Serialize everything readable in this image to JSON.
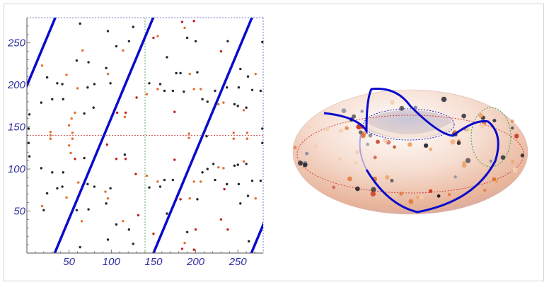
{
  "chart_data": [
    {
      "type": "scatter",
      "xlim": [
        0,
        280
      ],
      "ylim": [
        0,
        280
      ],
      "x_ticks": [
        50,
        100,
        150,
        200,
        250
      ],
      "y_ticks": [
        50,
        100,
        150,
        200,
        250
      ],
      "x_tick_labels": [
        "50",
        "100",
        "150",
        "200",
        "250"
      ],
      "y_tick_labels": [
        "50",
        "100",
        "150",
        "200",
        "250"
      ],
      "grid": false,
      "reference_lines": [
        {
          "orientation": "vertical",
          "value": 140,
          "color": "#6aa86a",
          "style": "dotted"
        },
        {
          "orientation": "horizontal",
          "value": 140,
          "color": "#d86060",
          "style": "dotted"
        },
        {
          "orientation": "horizontal",
          "value": 280,
          "color": "#7a7ad0",
          "style": "dotted"
        },
        {
          "orientation": "vertical",
          "value": 280,
          "color": "#7a7ad0",
          "style": "dotted"
        }
      ],
      "lines": {
        "color": "#0a0acc",
        "slope": 2.4,
        "x_intercepts": [
          -83,
          33,
          150,
          266
        ]
      },
      "point_colors": {
        "k": "#262630",
        "o": "#e0702c",
        "r": "#c42020"
      },
      "points": [
        [
          63,
          273,
          "k"
        ],
        [
          96,
          264,
          "k"
        ],
        [
          126,
          269,
          "k"
        ],
        [
          121,
          252,
          "k"
        ],
        [
          106,
          246,
          "k"
        ],
        [
          114,
          241,
          "o"
        ],
        [
          66,
          241,
          "o"
        ],
        [
          59,
          229,
          "k"
        ],
        [
          73,
          227,
          "k"
        ],
        [
          18,
          223,
          "o"
        ],
        [
          47,
          212,
          "o"
        ],
        [
          24,
          209,
          "k"
        ],
        [
          94,
          220,
          "k"
        ],
        [
          96,
          213,
          "o"
        ],
        [
          36,
          202,
          "k"
        ],
        [
          42,
          201,
          "k"
        ],
        [
          60,
          196,
          "o"
        ],
        [
          72,
          197,
          "k"
        ],
        [
          80,
          201,
          "k"
        ],
        [
          99,
          202,
          "k"
        ],
        [
          30,
          183,
          "k"
        ],
        [
          43,
          183,
          "k"
        ],
        [
          17,
          179,
          "k"
        ],
        [
          3,
          165,
          "k"
        ],
        [
          57,
          167,
          "o"
        ],
        [
          68,
          166,
          "k"
        ],
        [
          79,
          173,
          "k"
        ],
        [
          107,
          167,
          "r"
        ],
        [
          117,
          167,
          "r"
        ],
        [
          116,
          162,
          "o"
        ],
        [
          130,
          185,
          "r"
        ],
        [
          53,
          160,
          "o"
        ],
        [
          50,
          152,
          "o"
        ],
        [
          28,
          144,
          "o"
        ],
        [
          28,
          140,
          "o"
        ],
        [
          28,
          136,
          "o"
        ],
        [
          54,
          143,
          "o"
        ],
        [
          54,
          136,
          "o"
        ],
        [
          50,
          128,
          "o"
        ],
        [
          52,
          119,
          "o"
        ],
        [
          57,
          112,
          "r"
        ],
        [
          68,
          113,
          "k"
        ],
        [
          95,
          129,
          "r"
        ],
        [
          106,
          112,
          "r"
        ],
        [
          116,
          117,
          "k"
        ],
        [
          117,
          112,
          "r"
        ],
        [
          2,
          131,
          "k"
        ],
        [
          3,
          115,
          "k"
        ],
        [
          2,
          148,
          "k"
        ],
        [
          17,
          101,
          "k"
        ],
        [
          30,
          96,
          "k"
        ],
        [
          43,
          96,
          "k"
        ],
        [
          129,
          94,
          "r"
        ],
        [
          61,
          84,
          "o"
        ],
        [
          72,
          82,
          "k"
        ],
        [
          80,
          79,
          "k"
        ],
        [
          42,
          79,
          "k"
        ],
        [
          36,
          77,
          "k"
        ],
        [
          99,
          77,
          "k"
        ],
        [
          93,
          73,
          "o"
        ],
        [
          96,
          65,
          "o"
        ],
        [
          47,
          66,
          "o"
        ],
        [
          24,
          71,
          "k"
        ],
        [
          94,
          59,
          "k"
        ],
        [
          18,
          56,
          "o"
        ],
        [
          20,
          51,
          "k"
        ],
        [
          59,
          51,
          "k"
        ],
        [
          73,
          52,
          "k"
        ],
        [
          132,
          45,
          "r"
        ],
        [
          65,
          38,
          "o"
        ],
        [
          106,
          34,
          "k"
        ],
        [
          114,
          38,
          "o"
        ],
        [
          121,
          28,
          "k"
        ],
        [
          126,
          11,
          "k"
        ],
        [
          96,
          16,
          "k"
        ],
        [
          63,
          7,
          "k"
        ],
        [
          150,
          256,
          "r"
        ],
        [
          155,
          258,
          "o"
        ],
        [
          184,
          275,
          "r"
        ],
        [
          198,
          276,
          "r"
        ],
        [
          187,
          268,
          "o"
        ],
        [
          190,
          256,
          "k"
        ],
        [
          200,
          252,
          "k"
        ],
        [
          166,
          233,
          "k"
        ],
        [
          230,
          240,
          "r"
        ],
        [
          238,
          252,
          "k"
        ],
        [
          279,
          251,
          "k"
        ],
        [
          177,
          214,
          "k"
        ],
        [
          182,
          214,
          "k"
        ],
        [
          193,
          213,
          "o"
        ],
        [
          202,
          215,
          "k"
        ],
        [
          253,
          219,
          "k"
        ],
        [
          262,
          210,
          "k"
        ],
        [
          271,
          213,
          "o"
        ],
        [
          145,
          202,
          "k"
        ],
        [
          158,
          201,
          "k"
        ],
        [
          155,
          195,
          "o"
        ],
        [
          163,
          193,
          "k"
        ],
        [
          173,
          193,
          "k"
        ],
        [
          186,
          192,
          "k"
        ],
        [
          198,
          195,
          "o"
        ],
        [
          206,
          195,
          "o"
        ],
        [
          223,
          193,
          "k"
        ],
        [
          237,
          197,
          "k"
        ],
        [
          251,
          197,
          "k"
        ],
        [
          267,
          194,
          "k"
        ],
        [
          277,
          193,
          "k"
        ],
        [
          142,
          189,
          "o"
        ],
        [
          208,
          183,
          "k"
        ],
        [
          214,
          180,
          "k"
        ],
        [
          227,
          177,
          "o"
        ],
        [
          233,
          179,
          "o"
        ],
        [
          246,
          177,
          "k"
        ],
        [
          250,
          175,
          "k"
        ],
        [
          260,
          173,
          "k"
        ],
        [
          257,
          170,
          "o"
        ],
        [
          175,
          168,
          "r"
        ],
        [
          279,
          148,
          "k"
        ],
        [
          245,
          143,
          "o"
        ],
        [
          245,
          136,
          "o"
        ],
        [
          261,
          143,
          "o"
        ],
        [
          261,
          136,
          "o"
        ],
        [
          192,
          142,
          "o"
        ],
        [
          192,
          137,
          "o"
        ],
        [
          213,
          139,
          "k"
        ],
        [
          279,
          131,
          "k"
        ],
        [
          175,
          111,
          "r"
        ],
        [
          221,
          106,
          "k"
        ],
        [
          214,
          100,
          "k"
        ],
        [
          208,
          96,
          "k"
        ],
        [
          227,
          102,
          "o"
        ],
        [
          233,
          101,
          "o"
        ],
        [
          246,
          104,
          "k"
        ],
        [
          250,
          105,
          "k"
        ],
        [
          257,
          109,
          "o"
        ],
        [
          260,
          106,
          "k"
        ],
        [
          142,
          92,
          "o"
        ],
        [
          163,
          87,
          "k"
        ],
        [
          173,
          87,
          "k"
        ],
        [
          223,
          87,
          "k"
        ],
        [
          155,
          85,
          "o"
        ],
        [
          198,
          85,
          "o"
        ],
        [
          206,
          85,
          "o"
        ],
        [
          237,
          82,
          "k"
        ],
        [
          251,
          82,
          "k"
        ],
        [
          267,
          86,
          "k"
        ],
        [
          277,
          86,
          "k"
        ],
        [
          234,
          76,
          "r"
        ],
        [
          158,
          79,
          "k"
        ],
        [
          145,
          78,
          "k"
        ],
        [
          182,
          64,
          "r"
        ],
        [
          193,
          65,
          "o"
        ],
        [
          202,
          64,
          "k"
        ],
        [
          271,
          65,
          "o"
        ],
        [
          253,
          59,
          "k"
        ],
        [
          262,
          68,
          "k"
        ],
        [
          166,
          47,
          "k"
        ],
        [
          230,
          40,
          "r"
        ],
        [
          200,
          28,
          "r"
        ],
        [
          190,
          25,
          "k"
        ],
        [
          238,
          28,
          "r"
        ],
        [
          150,
          23,
          "r"
        ],
        [
          187,
          12,
          "o"
        ],
        [
          184,
          5,
          "r"
        ],
        [
          198,
          4,
          "r"
        ],
        [
          263,
          14,
          "k"
        ]
      ]
    },
    {
      "type": "3d-surface",
      "surface": "torus",
      "surface_color": "#f2c8b0",
      "curve_color": "#0a0acc"
    }
  ]
}
